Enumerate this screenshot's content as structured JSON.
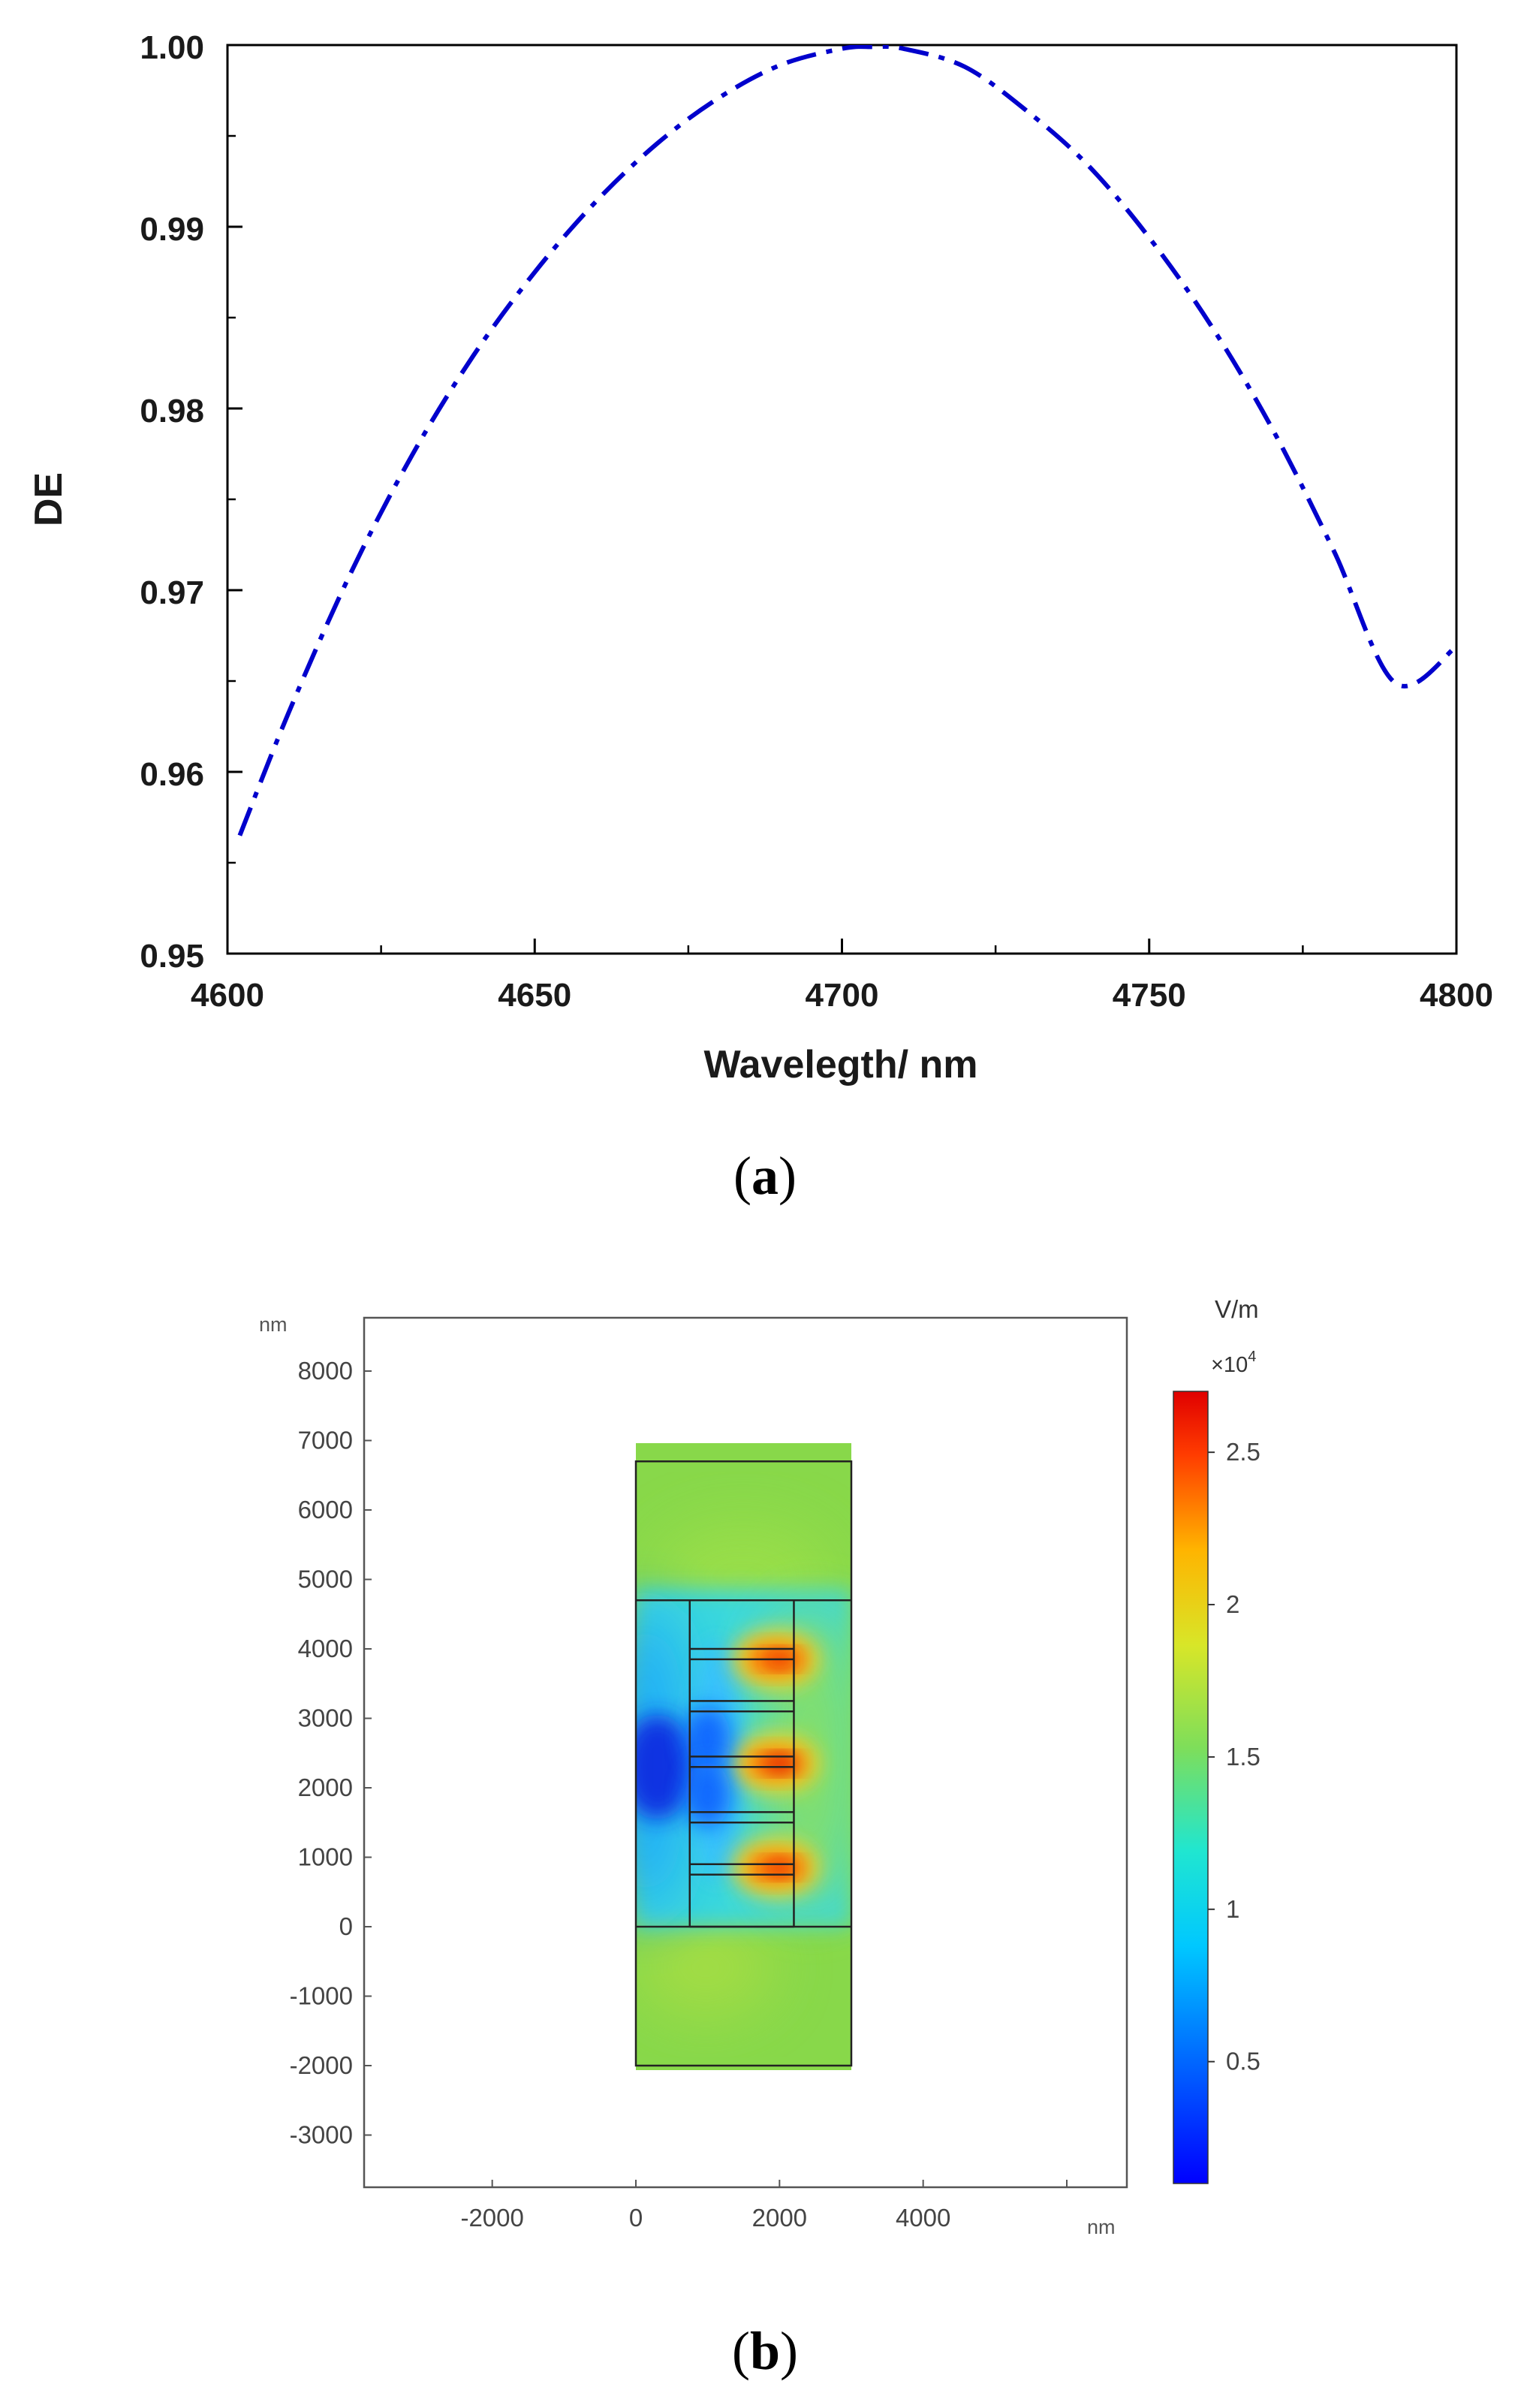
{
  "panel_a": {
    "caption_letter": "a"
  },
  "panel_b": {
    "caption_letter": "b"
  },
  "chart_data": [
    {
      "type": "line",
      "xlabel": "Wavelegth/ nm",
      "ylabel": "DE",
      "xlim": [
        4600,
        4800
      ],
      "ylim": [
        0.95,
        1.0
      ],
      "xticks": [
        "4600",
        "4650",
        "4700",
        "4750",
        "4800"
      ],
      "yticks": [
        "0.95",
        "0.96",
        "0.97",
        "0.98",
        "0.99",
        "1.00"
      ],
      "line_color": "#0000cc",
      "line_style": "dash-dot",
      "series": [
        {
          "x": [
            4602,
            4610,
            4620,
            4630,
            4640,
            4650,
            4660,
            4670,
            4680,
            4690,
            4700,
            4705,
            4710,
            4720,
            4730,
            4740,
            4750,
            4760,
            4770,
            4780,
            4790,
            4800
          ],
          "y": [
            0.9565,
            0.9633,
            0.9709,
            0.9774,
            0.9829,
            0.9875,
            0.9914,
            0.9946,
            0.9971,
            0.9989,
            0.9998,
            0.9999,
            0.9998,
            0.9988,
            0.9964,
            0.9934,
            0.9894,
            0.9846,
            0.9789,
            0.9722,
            0.9649,
            0.9669
          ]
        }
      ],
      "grid": false
    },
    {
      "type": "heatmap",
      "x_unit": "nm",
      "y_unit": "nm",
      "xlim": [
        -3800,
        6800
      ],
      "ylim": [
        -3700,
        8500
      ],
      "xticks": [
        "-2000",
        "0",
        "2000",
        "4000"
      ],
      "yticks": [
        "8000",
        "7000",
        "6000",
        "5000",
        "4000",
        "3000",
        "2000",
        "1000",
        "0",
        "-1000",
        "-2000",
        "-3000"
      ],
      "colorbar": {
        "unit": "V/m",
        "multiplier": "×10",
        "exponent": "4",
        "range": [
          0.1,
          2.7
        ],
        "ticks": [
          "2.5",
          "2",
          "1.5",
          "1",
          "0.5"
        ]
      },
      "domain": {
        "outer_box_x": [
          0,
          3000
        ],
        "outer_box_y": [
          -2000,
          6700
        ],
        "grating_region_y": [
          0,
          4700
        ],
        "grating_x": [
          750,
          2200
        ],
        "grating_layer_boundaries_y": [
          0,
          750,
          900,
          1500,
          1650,
          2300,
          2450,
          3100,
          3250,
          3850,
          4000,
          4700
        ]
      },
      "field_features": [
        {
          "kind": "hotspot",
          "x": 1950,
          "y": 3850,
          "value": 2.4
        },
        {
          "kind": "hotspot",
          "x": 1950,
          "y": 2350,
          "value": 2.6
        },
        {
          "kind": "hotspot",
          "x": 1950,
          "y": 850,
          "value": 2.3
        },
        {
          "kind": "coldspot",
          "x": 300,
          "y": 2300,
          "value": 0.2
        },
        {
          "kind": "coldspot",
          "x": 1000,
          "y": 2700,
          "value": 0.5
        },
        {
          "kind": "coldspot",
          "x": 1000,
          "y": 1900,
          "value": 0.5
        }
      ]
    }
  ]
}
